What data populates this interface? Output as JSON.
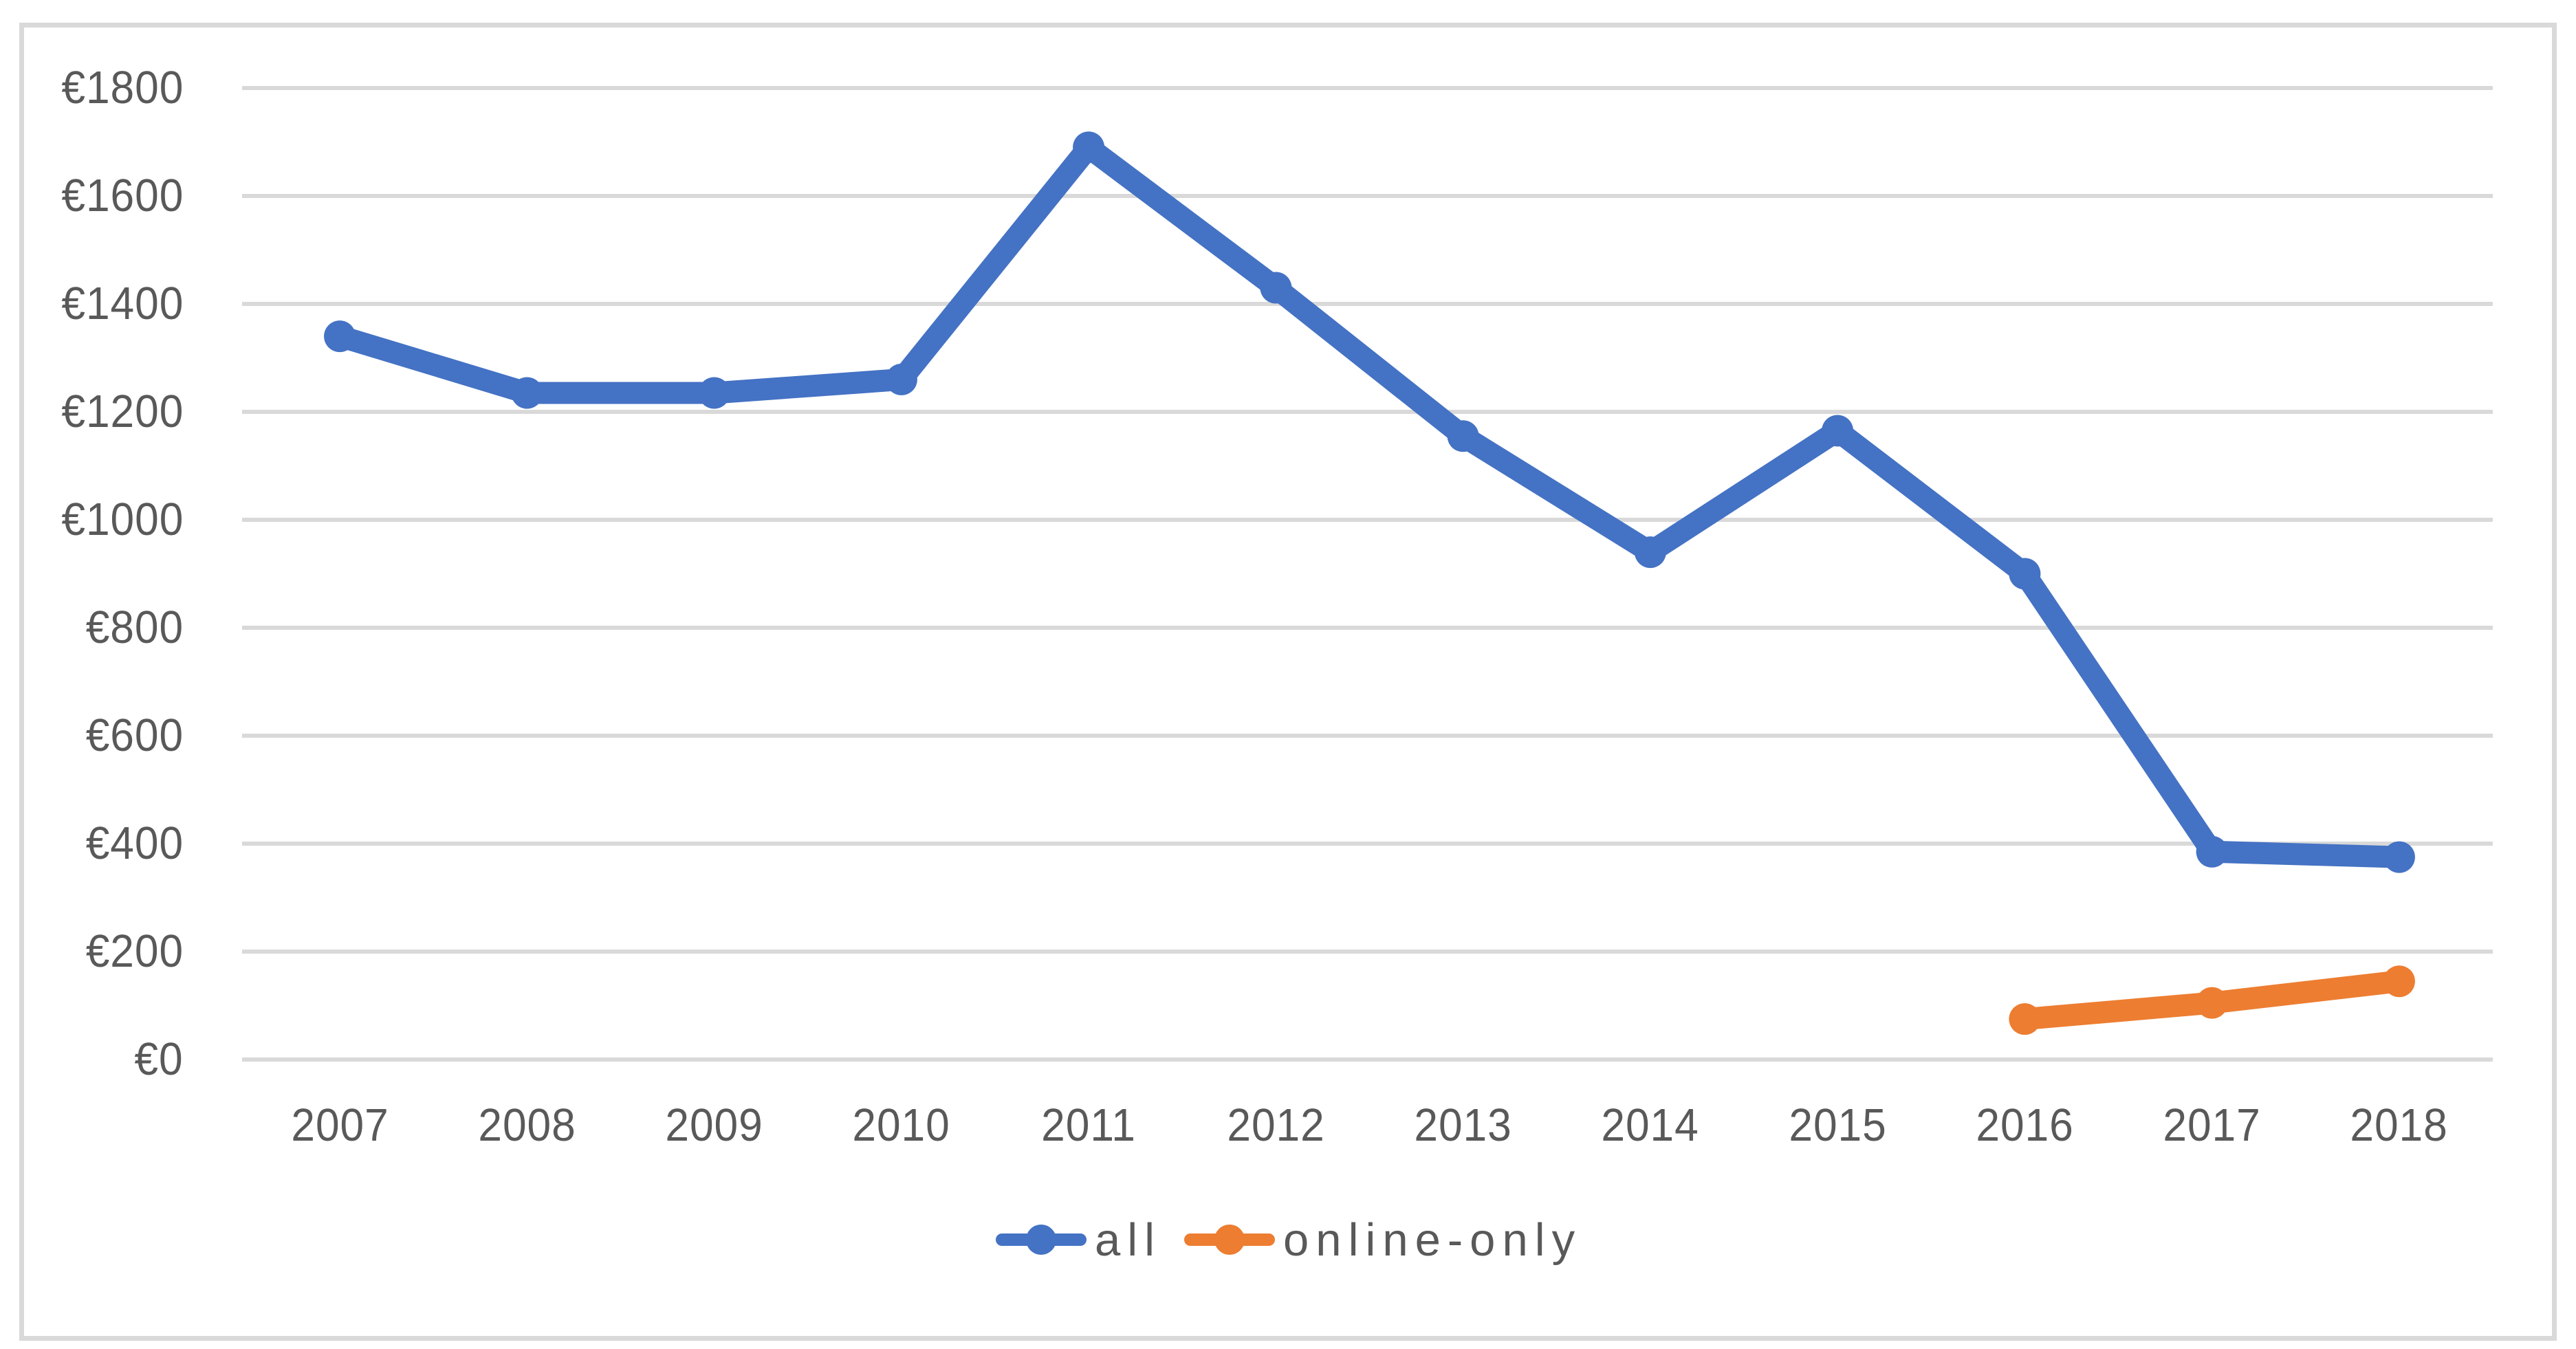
{
  "chart_data": {
    "type": "line",
    "title": "",
    "xlabel": "",
    "ylabel": "",
    "categories": [
      "2007",
      "2008",
      "2009",
      "2010",
      "2011",
      "2012",
      "2013",
      "2014",
      "2015",
      "2016",
      "2017",
      "2018"
    ],
    "series": [
      {
        "name": "all",
        "color": "#4472C4",
        "values": [
          1340,
          1235,
          1235,
          1260,
          1690,
          1430,
          1155,
          940,
          1165,
          900,
          385,
          375
        ]
      },
      {
        "name": "online-only",
        "color": "#ED7D31",
        "values": [
          null,
          null,
          null,
          null,
          null,
          null,
          null,
          null,
          null,
          75,
          105,
          145
        ]
      }
    ],
    "ylim": [
      0,
      1800
    ],
    "ytick_step": 200,
    "ytick_labels": [
      "€0",
      "€200",
      "€400",
      "€600",
      "€800",
      "€1000",
      "€1200",
      "€1400",
      "€1600",
      "€1800"
    ],
    "grid": "horizontal",
    "legend_position": "bottom-center"
  },
  "legend": {
    "items": [
      {
        "label": "all",
        "color": "#4472C4"
      },
      {
        "label": "online-only",
        "color": "#ED7D31"
      }
    ]
  },
  "colors": {
    "background": "#FFFFFF",
    "axis_text": "#595959",
    "gridline": "#D9D9D9",
    "border": "#D9D9D9",
    "series_all": "#4472C4",
    "series_online_only": "#ED7D31"
  }
}
